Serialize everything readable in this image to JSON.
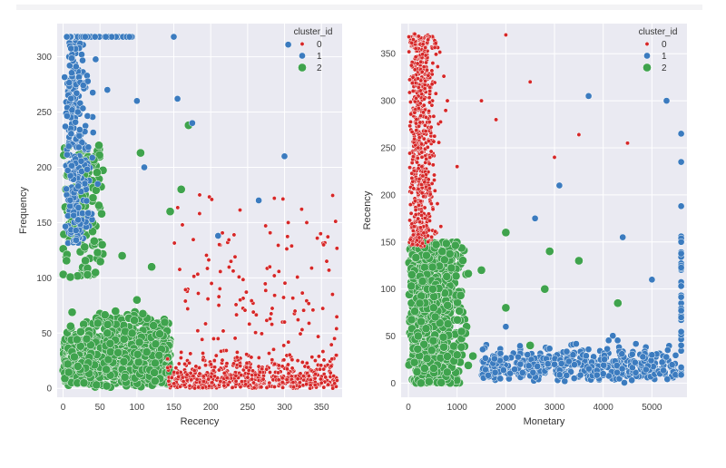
{
  "colors": {
    "cluster_0": "#d62728",
    "cluster_1": "#3b7bbf",
    "cluster_2": "#3fa34d",
    "panel_bg": "#eaeaf2",
    "grid": "#ffffff"
  },
  "chart_data": [
    {
      "type": "scatter",
      "title": "",
      "xlabel": "Recency",
      "ylabel": "Frequency",
      "xlim": [
        -8,
        378
      ],
      "ylim": [
        -8,
        330
      ],
      "xticks": [
        0,
        50,
        100,
        150,
        200,
        250,
        300,
        350
      ],
      "yticks": [
        0,
        50,
        100,
        150,
        200,
        250,
        300
      ],
      "grid": true,
      "legend": {
        "title": "cluster_id",
        "placement": "top-right",
        "entries": [
          "0",
          "1",
          "2"
        ]
      },
      "series": [
        {
          "name": "0",
          "color_key": "cluster_0",
          "approx_region": {
            "x": [
              140,
              372
            ],
            "y": [
              0,
              180
            ]
          },
          "sample_points": [
            [
              180,
              20
            ],
            [
              210,
              45
            ],
            [
              250,
              10
            ],
            [
              300,
              60
            ],
            [
              350,
              5
            ],
            [
              370,
              30
            ],
            [
              280,
              110
            ],
            [
              330,
              150
            ],
            [
              185,
              175
            ],
            [
              240,
              80
            ],
            [
              305,
              150
            ],
            [
              365,
              85
            ]
          ]
        },
        {
          "name": "1",
          "color_key": "cluster_1",
          "approx_region": {
            "x": [
              0,
              160
            ],
            "y": [
              120,
              318
            ]
          },
          "sample_points": [
            [
              5,
              318
            ],
            [
              30,
              318
            ],
            [
              90,
              318
            ],
            [
              150,
              318
            ],
            [
              305,
              311
            ],
            [
              60,
              270
            ],
            [
              20,
              250
            ],
            [
              100,
              260
            ],
            [
              155,
              262
            ],
            [
              175,
              240
            ],
            [
              265,
              170
            ],
            [
              300,
              210
            ],
            [
              110,
              200
            ],
            [
              210,
              138
            ]
          ]
        },
        {
          "name": "2",
          "color_key": "cluster_2",
          "approx_region": {
            "x": [
              0,
              145
            ],
            "y": [
              0,
              230
            ]
          },
          "sample_points": [
            [
              20,
              20
            ],
            [
              60,
              50
            ],
            [
              100,
              80
            ],
            [
              130,
              30
            ],
            [
              40,
              150
            ],
            [
              80,
              120
            ],
            [
              10,
              200
            ],
            [
              120,
              110
            ],
            [
              170,
              238
            ],
            [
              160,
              180
            ],
            [
              105,
              213
            ],
            [
              145,
              160
            ]
          ]
        }
      ]
    },
    {
      "type": "scatter",
      "title": "",
      "xlabel": "Monetary",
      "ylabel": "Recency",
      "xlim": [
        -150,
        5720
      ],
      "ylim": [
        -15,
        382
      ],
      "xticks": [
        0,
        1000,
        2000,
        3000,
        4000,
        5000
      ],
      "yticks": [
        0,
        50,
        100,
        150,
        200,
        250,
        300,
        350
      ],
      "grid": true,
      "legend": {
        "title": "cluster_id",
        "placement": "top-right",
        "entries": [
          "0",
          "1",
          "2"
        ]
      },
      "series": [
        {
          "name": "0",
          "color_key": "cluster_0",
          "approx_region": {
            "x": [
              0,
              1500
            ],
            "y": [
              140,
              372
            ]
          },
          "sample_points": [
            [
              100,
              365
            ],
            [
              300,
              360
            ],
            [
              500,
              340
            ],
            [
              800,
              300
            ],
            [
              200,
              250
            ],
            [
              1000,
              230
            ],
            [
              1500,
              300
            ],
            [
              2000,
              370
            ],
            [
              2500,
              320
            ],
            [
              3000,
              240
            ],
            [
              3500,
              264
            ],
            [
              4500,
              255
            ],
            [
              1800,
              280
            ]
          ]
        },
        {
          "name": "1",
          "color_key": "cluster_1",
          "approx_region": {
            "x": [
              1000,
              5600
            ],
            "y": [
              0,
              150
            ]
          },
          "sample_points": [
            [
              3000,
              20
            ],
            [
              4000,
              10
            ],
            [
              5000,
              30
            ],
            [
              5600,
              265
            ],
            [
              5600,
              235
            ],
            [
              5600,
              188
            ],
            [
              5600,
              150
            ],
            [
              5300,
              300
            ],
            [
              3700,
              305
            ],
            [
              4400,
              155
            ],
            [
              3100,
              210
            ],
            [
              2600,
              175
            ],
            [
              5000,
              110
            ],
            [
              2000,
              60
            ]
          ]
        },
        {
          "name": "2",
          "color_key": "cluster_2",
          "approx_region": {
            "x": [
              0,
              2900
            ],
            "y": [
              0,
              160
            ]
          },
          "sample_points": [
            [
              200,
              50
            ],
            [
              500,
              100
            ],
            [
              1000,
              30
            ],
            [
              1500,
              120
            ],
            [
              2000,
              80
            ],
            [
              2500,
              40
            ],
            [
              2800,
              100
            ],
            [
              300,
              150
            ],
            [
              2000,
              160
            ],
            [
              3500,
              130
            ],
            [
              4300,
              85
            ],
            [
              2900,
              140
            ]
          ]
        }
      ]
    }
  ]
}
